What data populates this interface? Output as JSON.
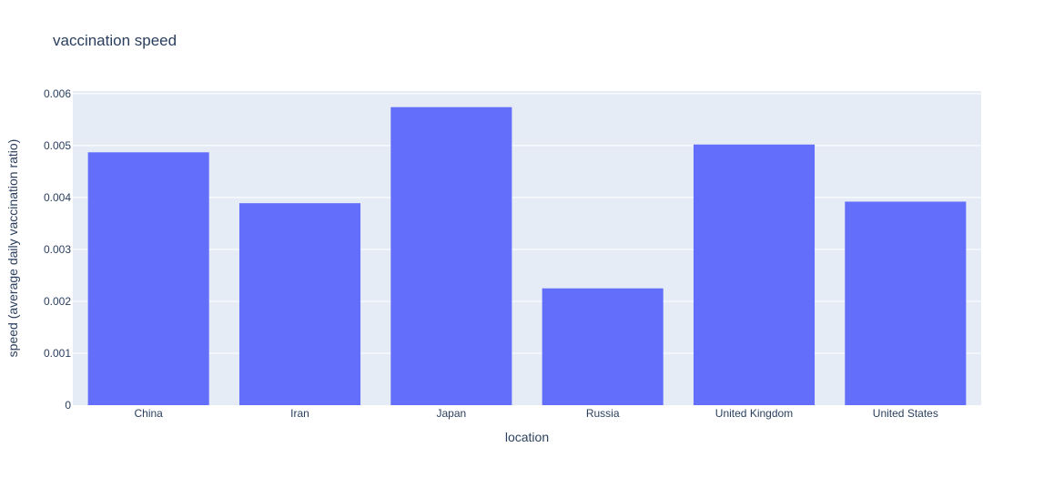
{
  "chart_data": {
    "type": "bar",
    "title": "vaccination speed",
    "xlabel": "location",
    "ylabel": "speed  (average daily vaccination ratio)",
    "categories": [
      "China",
      "Iran",
      "Japan",
      "Russia",
      "United Kingdom",
      "United States"
    ],
    "values": [
      0.00487,
      0.00389,
      0.00574,
      0.00225,
      0.00502,
      0.00392
    ],
    "ylim": [
      0,
      0.00605
    ],
    "yticks": [
      0,
      0.001,
      0.002,
      0.003,
      0.004,
      0.005,
      0.006
    ],
    "ytick_labels": [
      "0",
      "0.001",
      "0.002",
      "0.003",
      "0.004",
      "0.005",
      "0.006"
    ],
    "grid": true,
    "colors": {
      "bar": "#636efa",
      "plot_bg": "#e5ecf6",
      "grid": "#ffffff",
      "text": "#2a3f5f"
    }
  }
}
